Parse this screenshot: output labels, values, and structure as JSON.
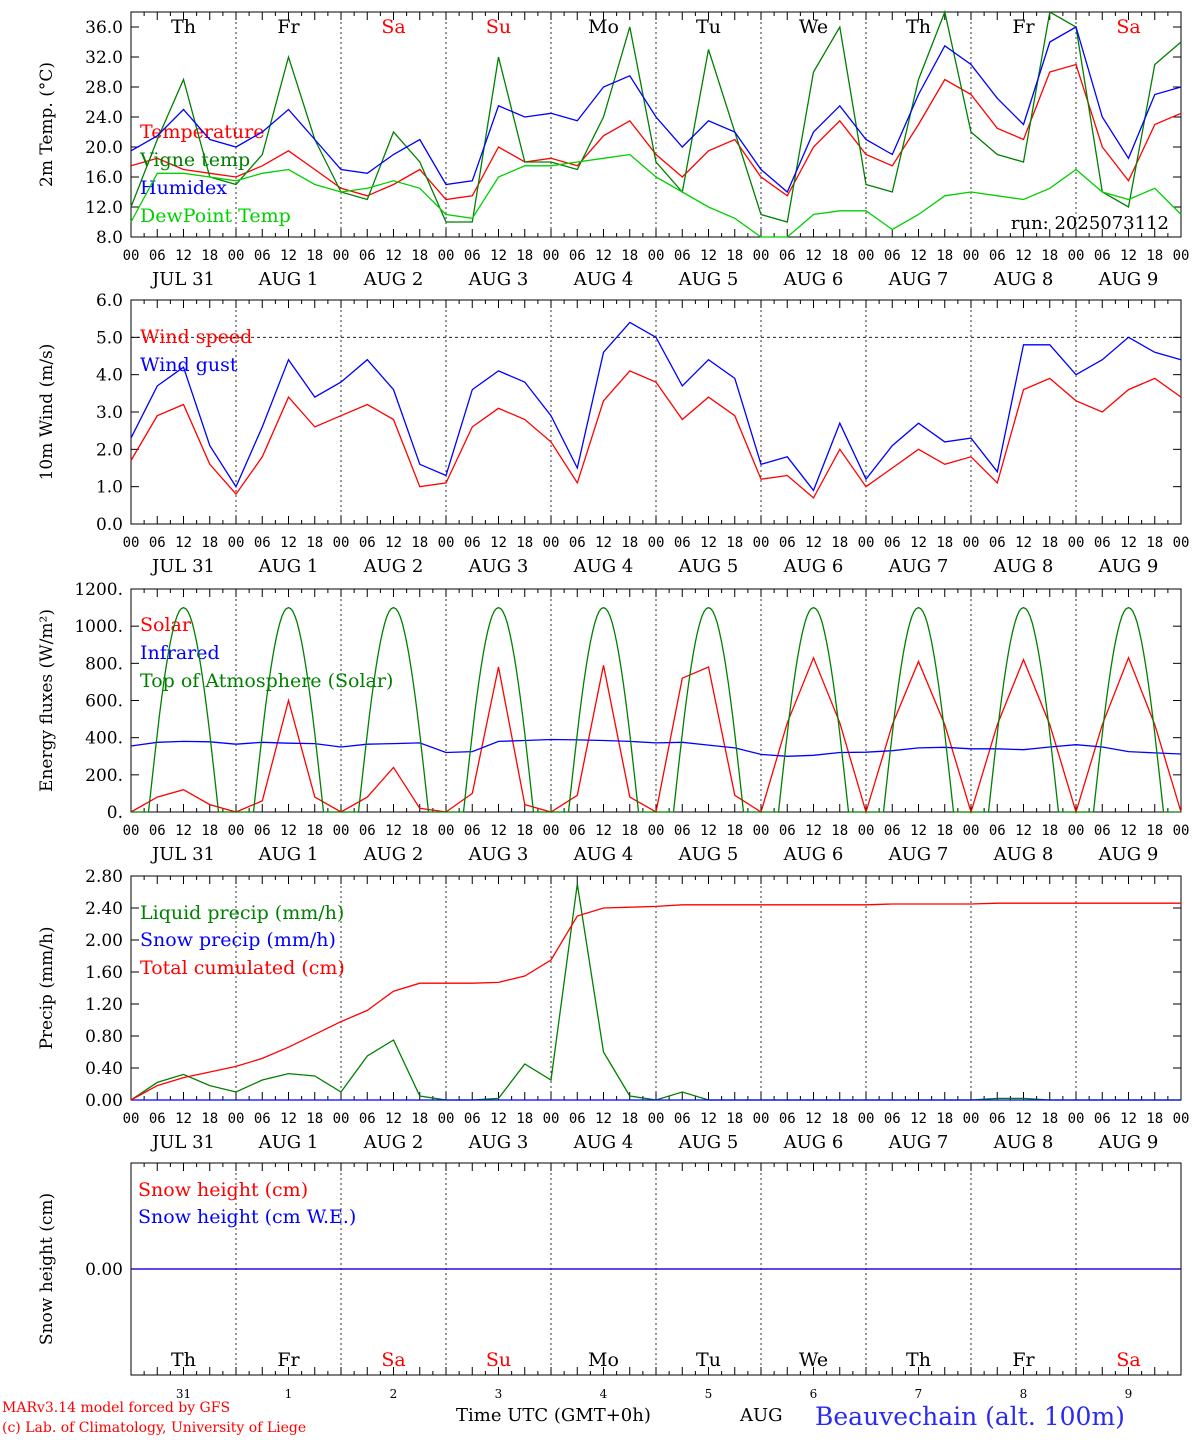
{
  "colors": {
    "temperature": "#ff0000",
    "vigne": "#008000",
    "humidex": "#0000ff",
    "dewpoint": "#00d000",
    "toa": "#008000",
    "frame": "#000000",
    "weekend": "#ff0000"
  },
  "days": [
    {
      "abbr": "Th",
      "date_label": "JUL 31",
      "num": "31",
      "weekend": false
    },
    {
      "abbr": "Fr",
      "date_label": "AUG  1",
      "num": "1",
      "weekend": false
    },
    {
      "abbr": "Sa",
      "date_label": "AUG  2",
      "num": "2",
      "weekend": true
    },
    {
      "abbr": "Su",
      "date_label": "AUG  3",
      "num": "3",
      "weekend": true
    },
    {
      "abbr": "Mo",
      "date_label": "AUG  4",
      "num": "4",
      "weekend": false
    },
    {
      "abbr": "Tu",
      "date_label": "AUG  5",
      "num": "5",
      "weekend": false
    },
    {
      "abbr": "We",
      "date_label": "AUG  6",
      "num": "6",
      "weekend": false
    },
    {
      "abbr": "Th",
      "date_label": "AUG  7",
      "num": "7",
      "weekend": false
    },
    {
      "abbr": "Fr",
      "date_label": "AUG  8",
      "num": "8",
      "weekend": false
    },
    {
      "abbr": "Sa",
      "date_label": "AUG  9",
      "num": "9",
      "weekend": true
    }
  ],
  "hour_ticks": [
    "00",
    "06",
    "12",
    "18"
  ],
  "end_tick": "00",
  "footer": {
    "model": "MARv3.14 model forced by GFS",
    "lab": "(c) Lab. of Climatology, University of Liege",
    "time_label": "Time UTC (GMT+0h)",
    "month": "AUG",
    "station": "Beauvechain (alt. 100m)"
  },
  "chart_data": [
    {
      "type": "line",
      "ylabel": "2m Temp. (°C)",
      "ylim": [
        8.0,
        38.0
      ],
      "yticks": [
        8.0,
        12.0,
        16.0,
        20.0,
        24.0,
        28.0,
        32.0,
        36.0
      ],
      "ytick_labels": [
        "8.0",
        "12.0",
        "16.0",
        "20.0",
        "24.0",
        "28.0",
        "32.0",
        "36.0"
      ],
      "annotation": "run: 2025073112",
      "x_hours": [
        0,
        6,
        12,
        18,
        24,
        30,
        36,
        42,
        48,
        54,
        60,
        66,
        72,
        78,
        84,
        90,
        96,
        102,
        108,
        114,
        120,
        126,
        132,
        138,
        144,
        150,
        156,
        162,
        168,
        174,
        180,
        186,
        192,
        198,
        204,
        210,
        216,
        222,
        228,
        234,
        240
      ],
      "series": [
        {
          "name": "Temperature",
          "color_key": "temperature",
          "values": [
            17.5,
            18.5,
            17,
            16.5,
            16,
            17.5,
            19.5,
            17,
            14.5,
            13.5,
            15,
            17,
            13,
            13.5,
            20,
            18,
            18.5,
            17.5,
            21.5,
            23.5,
            19,
            16,
            19.5,
            21,
            16,
            13.5,
            20,
            23.5,
            19,
            17.5,
            23,
            29,
            27,
            22.5,
            21,
            30,
            31,
            20,
            15.5,
            23,
            24.5
          ]
        },
        {
          "name": "Vigne temp",
          "color_key": "vigne",
          "values": [
            12,
            21,
            29,
            16,
            15,
            19,
            32,
            21,
            14,
            13,
            22,
            18,
            10,
            10,
            32,
            18,
            18,
            17,
            24,
            36,
            18,
            14,
            33,
            22,
            11,
            10,
            30,
            36,
            15,
            14,
            29,
            38,
            22,
            19,
            18,
            38,
            36,
            14,
            12,
            31,
            34
          ]
        },
        {
          "name": "Humidex",
          "color_key": "humidex",
          "values": [
            19.5,
            21.5,
            25,
            21,
            20,
            22,
            25,
            21,
            17,
            16.5,
            19,
            21,
            15,
            15.5,
            25.5,
            24,
            24.5,
            23.5,
            28,
            29.5,
            24,
            20,
            23.5,
            22,
            17,
            14,
            22,
            25.5,
            21,
            19,
            27,
            33.5,
            31,
            26.5,
            23,
            34,
            36,
            24,
            18.5,
            27,
            28
          ]
        },
        {
          "name": "DewPoint Temp",
          "color_key": "dewpoint",
          "values": [
            10,
            16.5,
            16.5,
            16,
            15.5,
            16.5,
            17,
            15,
            14,
            14.5,
            15.5,
            14.5,
            11,
            10.5,
            16,
            17.5,
            17.5,
            18,
            18.5,
            19,
            16,
            14,
            12,
            10.5,
            8,
            8,
            11,
            11.5,
            11.5,
            9,
            11,
            13.5,
            14,
            13.5,
            13,
            14.5,
            17,
            14,
            13,
            14.5,
            11
          ]
        }
      ]
    },
    {
      "type": "line",
      "ylabel": "10m Wind (m/s)",
      "ylim": [
        0.0,
        6.0
      ],
      "yticks": [
        0.0,
        1.0,
        2.0,
        3.0,
        4.0,
        5.0,
        6.0
      ],
      "ytick_labels": [
        "0.0",
        "1.0",
        "2.0",
        "3.0",
        "4.0",
        "5.0",
        "6.0"
      ],
      "ref_line": 5.0,
      "x_hours": [
        0,
        6,
        12,
        18,
        24,
        30,
        36,
        42,
        48,
        54,
        60,
        66,
        72,
        78,
        84,
        90,
        96,
        102,
        108,
        114,
        120,
        126,
        132,
        138,
        144,
        150,
        156,
        162,
        168,
        174,
        180,
        186,
        192,
        198,
        204,
        210,
        216,
        222,
        228,
        234,
        240
      ],
      "series": [
        {
          "name": "Wind speed",
          "color_key": "temperature",
          "values": [
            1.7,
            2.9,
            3.2,
            1.6,
            0.8,
            1.8,
            3.4,
            2.6,
            2.9,
            3.2,
            2.8,
            1.0,
            1.1,
            2.6,
            3.1,
            2.8,
            2.2,
            1.1,
            3.3,
            4.1,
            3.8,
            2.8,
            3.4,
            2.9,
            1.2,
            1.3,
            0.7,
            2.0,
            1.0,
            1.5,
            2.0,
            1.6,
            1.8,
            1.1,
            3.6,
            3.9,
            3.3,
            3.0,
            3.6,
            3.9,
            3.4
          ]
        },
        {
          "name": "Wind gust",
          "color_key": "humidex",
          "values": [
            2.3,
            3.7,
            4.2,
            2.1,
            1.0,
            2.6,
            4.4,
            3.4,
            3.8,
            4.4,
            3.6,
            1.6,
            1.3,
            3.6,
            4.1,
            3.8,
            2.9,
            1.5,
            4.6,
            5.4,
            5.0,
            3.7,
            4.4,
            3.9,
            1.6,
            1.8,
            0.9,
            2.7,
            1.2,
            2.1,
            2.7,
            2.2,
            2.3,
            1.4,
            4.8,
            4.8,
            4.0,
            4.4,
            5.0,
            4.6,
            4.4
          ]
        }
      ]
    },
    {
      "type": "line",
      "ylabel": "Energy fluxes (W/m²)",
      "ylim": [
        0,
        1200
      ],
      "yticks": [
        0,
        200,
        400,
        600,
        800,
        1000,
        1200
      ],
      "ytick_labels": [
        "0.",
        "200.",
        "400.",
        "600.",
        "800.",
        "1000.",
        "1200."
      ],
      "x_hours": [
        0,
        6,
        12,
        18,
        24,
        30,
        36,
        42,
        48,
        54,
        60,
        66,
        72,
        78,
        84,
        90,
        96,
        102,
        108,
        114,
        120,
        126,
        132,
        138,
        144,
        150,
        156,
        162,
        168,
        174,
        180,
        186,
        192,
        198,
        204,
        210,
        216,
        222,
        228,
        234,
        240
      ],
      "series": [
        {
          "name": "Solar",
          "color_key": "temperature",
          "values": [
            0,
            80,
            120,
            40,
            0,
            60,
            600,
            80,
            0,
            80,
            240,
            20,
            0,
            100,
            780,
            40,
            0,
            90,
            790,
            80,
            0,
            720,
            780,
            90,
            0,
            480,
            830,
            480,
            0,
            470,
            810,
            470,
            0,
            470,
            820,
            470,
            0,
            470,
            830,
            470,
            0
          ]
        },
        {
          "name": "Infrared",
          "color_key": "humidex",
          "values": [
            355,
            375,
            380,
            378,
            365,
            375,
            370,
            368,
            350,
            365,
            368,
            372,
            320,
            325,
            380,
            385,
            390,
            388,
            385,
            380,
            372,
            375,
            360,
            345,
            310,
            300,
            305,
            320,
            322,
            330,
            345,
            348,
            340,
            340,
            335,
            350,
            362,
            350,
            325,
            318,
            312
          ]
        },
        {
          "name": "Top of Atmosphere (Solar)",
          "color_key": "toa",
          "is_clear_sky_curve": true,
          "day_start_h": 4,
          "day_end_h": 20,
          "peak": 1100
        }
      ]
    },
    {
      "type": "line",
      "ylabel": "Precip (mm/h)",
      "ylim": [
        0.0,
        2.8
      ],
      "yticks": [
        0.0,
        0.4,
        0.8,
        1.2,
        1.6,
        2.0,
        2.4,
        2.8
      ],
      "ytick_labels": [
        "0.00",
        "0.40",
        "0.80",
        "1.20",
        "1.60",
        "2.00",
        "2.40",
        "2.80"
      ],
      "x_hours": [
        0,
        6,
        12,
        18,
        24,
        30,
        36,
        42,
        48,
        54,
        60,
        66,
        72,
        78,
        84,
        90,
        96,
        102,
        108,
        114,
        120,
        126,
        132,
        138,
        144,
        150,
        156,
        162,
        168,
        174,
        180,
        186,
        192,
        198,
        204,
        210,
        216,
        222,
        228,
        234,
        240
      ],
      "series": [
        {
          "name": "Liquid precip (mm/h)",
          "color_key": "vigne",
          "values": [
            0.0,
            0.22,
            0.32,
            0.18,
            0.1,
            0.25,
            0.33,
            0.3,
            0.1,
            0.55,
            0.75,
            0.05,
            0.0,
            0.0,
            0.02,
            0.45,
            0.25,
            2.7,
            0.6,
            0.05,
            0.0,
            0.1,
            0.0,
            0.0,
            0.0,
            0.0,
            0.0,
            0.0,
            0.0,
            0.0,
            0.0,
            0.0,
            0.0,
            0.02,
            0.02,
            0.0,
            0.0,
            0.0,
            0.0,
            0.0,
            0.0
          ]
        },
        {
          "name": "Snow precip (mm/h)",
          "color_key": "humidex",
          "values": [
            0,
            0,
            0,
            0,
            0,
            0,
            0,
            0,
            0,
            0,
            0,
            0,
            0,
            0,
            0,
            0,
            0,
            0,
            0,
            0,
            0,
            0,
            0,
            0,
            0,
            0,
            0,
            0,
            0,
            0,
            0,
            0,
            0,
            0,
            0,
            0,
            0,
            0,
            0,
            0,
            0
          ]
        },
        {
          "name": "Total cumulated (cm)",
          "color_key": "temperature",
          "values": [
            0.0,
            0.18,
            0.28,
            0.35,
            0.42,
            0.52,
            0.66,
            0.82,
            0.98,
            1.12,
            1.36,
            1.46,
            1.46,
            1.46,
            1.47,
            1.55,
            1.75,
            2.3,
            2.4,
            2.41,
            2.42,
            2.44,
            2.44,
            2.44,
            2.44,
            2.44,
            2.44,
            2.44,
            2.44,
            2.45,
            2.45,
            2.45,
            2.45,
            2.46,
            2.46,
            2.46,
            2.46,
            2.46,
            2.46,
            2.46,
            2.46
          ]
        }
      ]
    },
    {
      "type": "line",
      "ylabel": "Snow height (cm)",
      "ylim": [
        -1.0,
        1.0
      ],
      "yticks": [
        0.0
      ],
      "ytick_labels": [
        "0.00"
      ],
      "x_hours": [
        0,
        240
      ],
      "series": [
        {
          "name": "Snow height (cm)",
          "color_key": "temperature",
          "values": [
            0.0,
            0.0
          ]
        },
        {
          "name": "Snow height (cm W.E.)",
          "color_key": "humidex",
          "values": [
            0.0,
            0.0
          ]
        }
      ]
    }
  ]
}
